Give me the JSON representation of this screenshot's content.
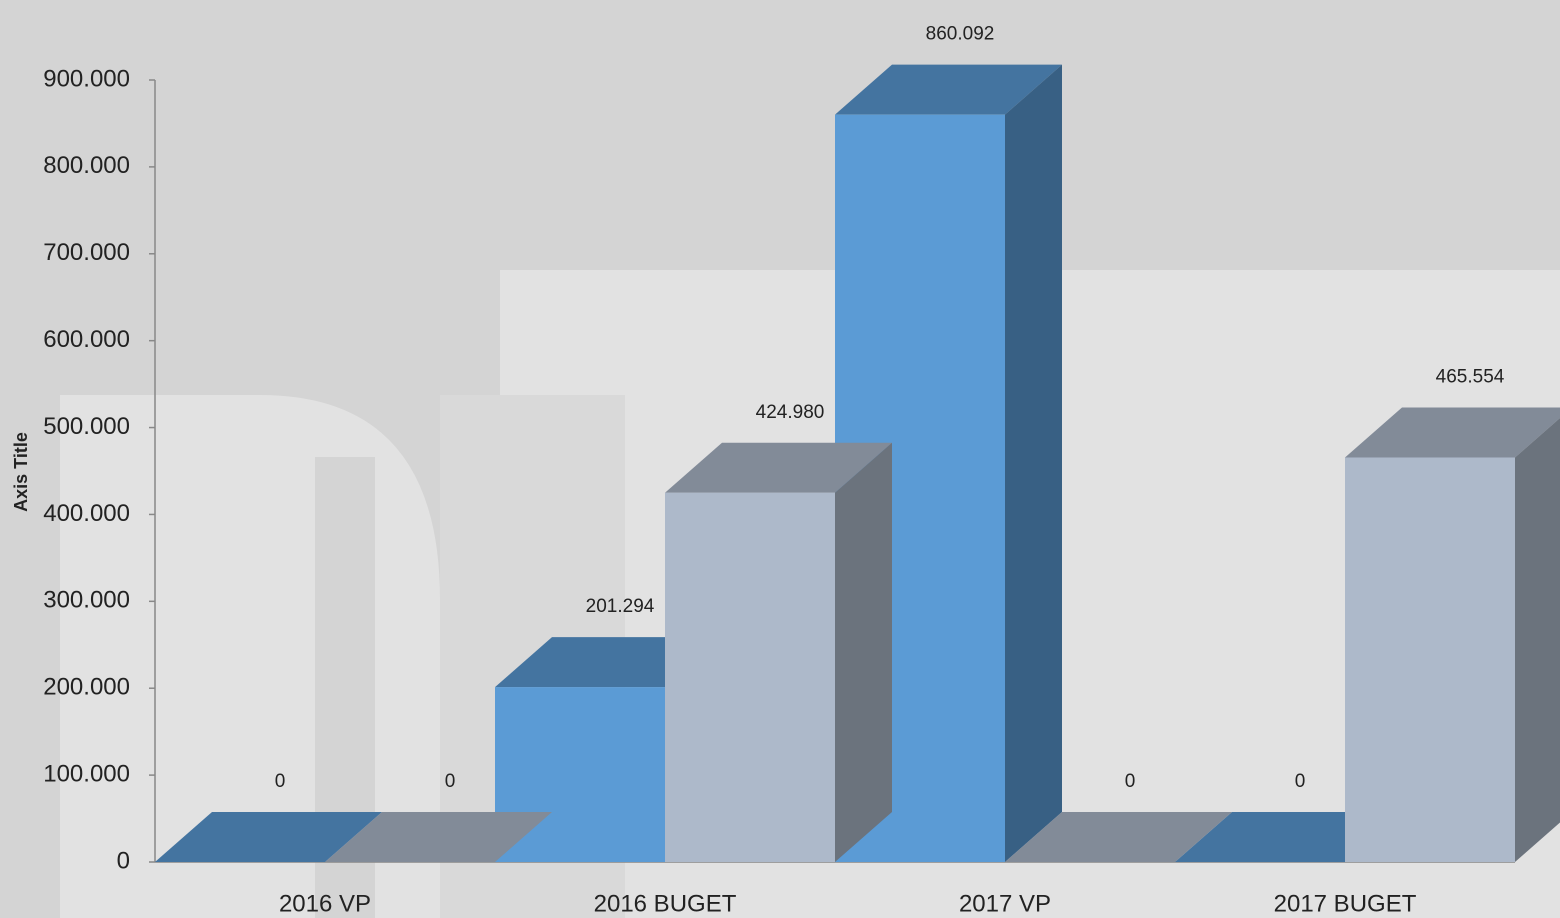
{
  "chart_data": {
    "type": "bar3d",
    "y_axis_title": "Axis Title",
    "categories": [
      "2016 VP",
      "2016 BUGET",
      "2017 VP",
      "2017 BUGET"
    ],
    "series": [
      {
        "color": "#5b9bd5",
        "values": [
          0,
          201294,
          860092,
          0
        ],
        "value_labels": [
          "0",
          "201.294",
          "860.092",
          "0"
        ]
      },
      {
        "color": "#adb9ca",
        "values": [
          0,
          424980,
          0,
          465554
        ],
        "value_labels": [
          "0",
          "424.980",
          "0",
          "465.554"
        ]
      }
    ],
    "ylim": [
      0,
      900000
    ],
    "yticks": [
      0,
      {
        "value": 100000,
        "label": "100.000"
      },
      {
        "value": 200000,
        "label": "200.000"
      },
      {
        "value": 300000,
        "label": "300.000"
      },
      {
        "value": 400000,
        "label": "400.000"
      },
      {
        "value": 500000,
        "label": "500.000"
      },
      {
        "value": 600000,
        "label": "600.000"
      },
      {
        "value": 700000,
        "label": "700.000"
      },
      {
        "value": 800000,
        "label": "800.000"
      },
      {
        "value": 900000,
        "label": "900.000"
      }
    ]
  }
}
